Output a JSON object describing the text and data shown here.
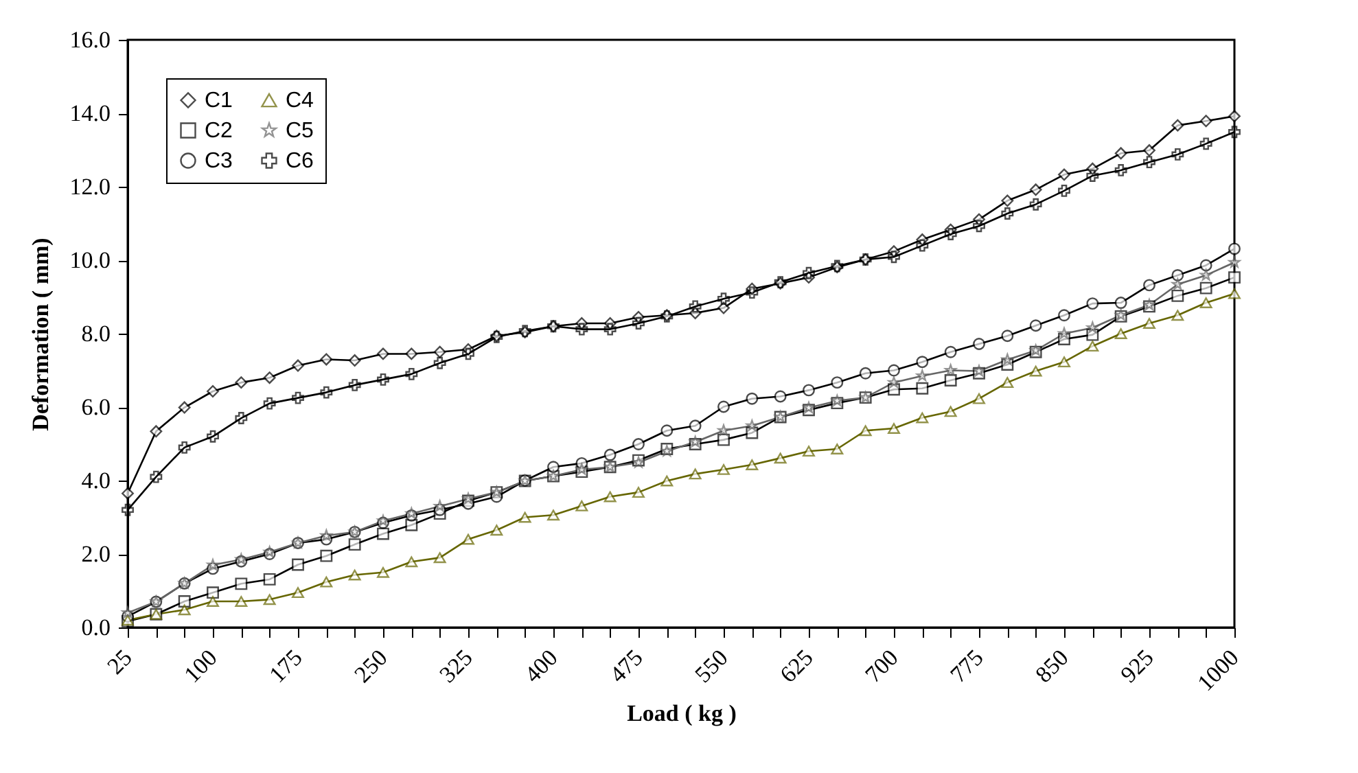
{
  "chart_data": {
    "type": "line",
    "xlabel": "Load ( kg )",
    "ylabel": "Deformation ( mm)",
    "categories": [
      "25",
      null,
      null,
      "100",
      null,
      null,
      "175",
      null,
      null,
      "250",
      null,
      null,
      "325",
      null,
      null,
      "400",
      null,
      null,
      "475",
      null,
      null,
      "550",
      null,
      null,
      "625",
      null,
      null,
      "700",
      null,
      null,
      "775",
      null,
      null,
      "850",
      null,
      null,
      "925",
      null,
      null,
      "1000"
    ],
    "ylim": [
      0,
      16
    ],
    "yticks": [
      {
        "value": 0,
        "label": "0.0"
      },
      {
        "value": 2,
        "label": "2.0"
      },
      {
        "value": 4,
        "label": "4.0"
      },
      {
        "value": 6,
        "label": "6.0"
      },
      {
        "value": 8,
        "label": "8.0"
      },
      {
        "value": 10,
        "label": "10.0"
      },
      {
        "value": 12,
        "label": "12.0"
      },
      {
        "value": 14,
        "label": "14.0"
      },
      {
        "value": 16,
        "label": "16.0"
      }
    ],
    "grid": false,
    "legend": "top left",
    "line_style": "solid",
    "series": [
      {
        "name": "C1",
        "color": "#000000",
        "marker": "diamond",
        "values": [
          3.65,
          5.34,
          5.99,
          6.43,
          6.67,
          6.8,
          7.13,
          7.3,
          7.27,
          7.45,
          7.45,
          7.5,
          7.57,
          7.94,
          8.04,
          8.2,
          8.28,
          8.28,
          8.45,
          8.5,
          8.56,
          8.7,
          9.22,
          9.37,
          9.53,
          9.81,
          10.02,
          10.24,
          10.56,
          10.83,
          11.11,
          11.62,
          11.92,
          12.33,
          12.49,
          12.91,
          12.99,
          13.67,
          13.79,
          13.92
        ]
      },
      {
        "name": "C2",
        "color": "#000000",
        "marker": "square",
        "values": [
          0.17,
          0.36,
          0.71,
          0.95,
          1.19,
          1.31,
          1.71,
          1.95,
          2.26,
          2.55,
          2.79,
          3.1,
          3.45,
          3.68,
          3.99,
          4.12,
          4.24,
          4.37,
          4.55,
          4.86,
          4.99,
          5.11,
          5.3,
          5.73,
          5.92,
          6.11,
          6.26,
          6.48,
          6.51,
          6.73,
          6.92,
          7.16,
          7.5,
          7.85,
          7.97,
          8.47,
          8.74,
          9.03,
          9.24,
          9.53
        ]
      },
      {
        "name": "C3",
        "color": "#000000",
        "marker": "circle",
        "values": [
          0.3,
          0.7,
          1.2,
          1.6,
          1.8,
          2.0,
          2.3,
          2.4,
          2.6,
          2.85,
          3.05,
          3.2,
          3.37,
          3.56,
          4.0,
          4.37,
          4.47,
          4.7,
          4.99,
          5.36,
          5.49,
          6.01,
          6.23,
          6.29,
          6.46,
          6.67,
          6.92,
          7.0,
          7.23,
          7.5,
          7.72,
          7.94,
          8.22,
          8.5,
          8.82,
          8.84,
          9.32,
          9.59,
          9.86,
          10.31
        ]
      },
      {
        "name": "C4",
        "color": "#666600",
        "marker": "triangle",
        "values": [
          0.2,
          0.36,
          0.48,
          0.71,
          0.71,
          0.76,
          0.95,
          1.24,
          1.43,
          1.5,
          1.79,
          1.9,
          2.4,
          2.65,
          3.0,
          3.06,
          3.31,
          3.56,
          3.68,
          3.99,
          4.18,
          4.3,
          4.43,
          4.61,
          4.8,
          4.86,
          5.36,
          5.42,
          5.71,
          5.88,
          6.23,
          6.67,
          6.98,
          7.23,
          7.66,
          8.0,
          8.28,
          8.5,
          8.84,
          9.09
        ]
      },
      {
        "name": "C5",
        "color": "#666666",
        "marker": "star",
        "values": [
          0.4,
          0.7,
          1.2,
          1.7,
          1.85,
          2.05,
          2.3,
          2.5,
          2.6,
          2.9,
          3.1,
          3.3,
          3.5,
          3.68,
          3.99,
          4.12,
          4.3,
          4.37,
          4.49,
          4.8,
          5.05,
          5.36,
          5.49,
          5.73,
          5.98,
          6.17,
          6.26,
          6.67,
          6.85,
          7.0,
          6.98,
          7.29,
          7.54,
          8.0,
          8.16,
          8.5,
          8.78,
          9.34,
          9.59,
          9.94
        ]
      },
      {
        "name": "C6",
        "color": "#000000",
        "marker": "cross",
        "values": [
          3.2,
          4.1,
          4.9,
          5.2,
          5.7,
          6.1,
          6.25,
          6.4,
          6.6,
          6.75,
          6.9,
          7.2,
          7.45,
          7.91,
          8.07,
          8.2,
          8.12,
          8.12,
          8.28,
          8.47,
          8.74,
          8.95,
          9.12,
          9.4,
          9.65,
          9.84,
          10.02,
          10.09,
          10.4,
          10.71,
          10.93,
          11.27,
          11.52,
          11.89,
          12.3,
          12.45,
          12.67,
          12.88,
          13.17,
          13.49
        ]
      }
    ]
  }
}
